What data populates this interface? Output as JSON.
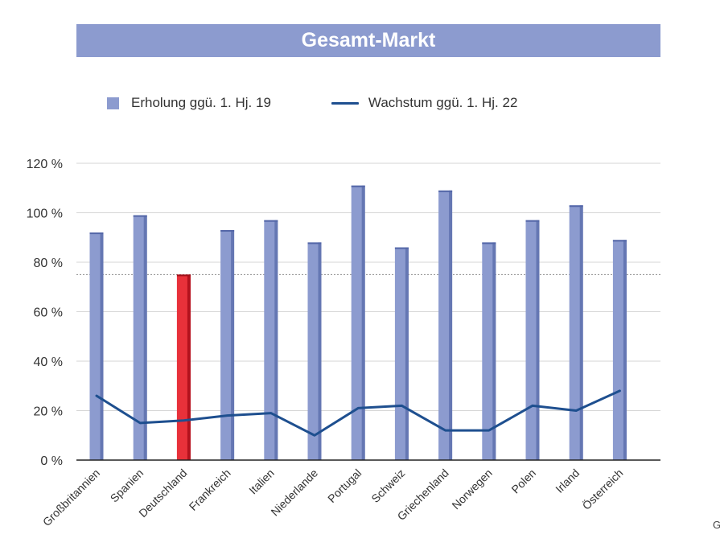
{
  "chart_data": {
    "type": "bar",
    "title": "Gesamt-Markt",
    "categories": [
      "Großbritannien",
      "Spanien",
      "Deutschland",
      "Frankreich",
      "Italien",
      "Niederlande",
      "Portugal",
      "Schweiz",
      "Griechenland",
      "Norwegen",
      "Polen",
      "Irland",
      "Österreich"
    ],
    "series": [
      {
        "name": "Erholung ggü. 1. Hj. 19",
        "type": "bar",
        "values": [
          92,
          99,
          75,
          93,
          97,
          88,
          111,
          86,
          109,
          88,
          97,
          103,
          89
        ],
        "color": "#8c9bcf",
        "highlight": {
          "category": "Deutschland",
          "color": "#e8313a"
        }
      },
      {
        "name": "Wachstum ggü. 1. Hj. 22",
        "type": "line",
        "values": [
          26,
          15,
          16,
          18,
          19,
          10,
          21,
          22,
          12,
          12,
          22,
          20,
          28
        ],
        "color": "#1e4f8f"
      }
    ],
    "reference_line": {
      "value": 75,
      "style": "dotted",
      "color": "#8a8a8a"
    },
    "yticks": [
      "0 %",
      "20 %",
      "40 %",
      "60 %",
      "80 %",
      "100 %",
      "120 %"
    ],
    "ylim": [
      0,
      120
    ],
    "xlabel": "",
    "ylabel": "",
    "grid": true,
    "legend_position": "top-left"
  },
  "overflow_text": "G"
}
